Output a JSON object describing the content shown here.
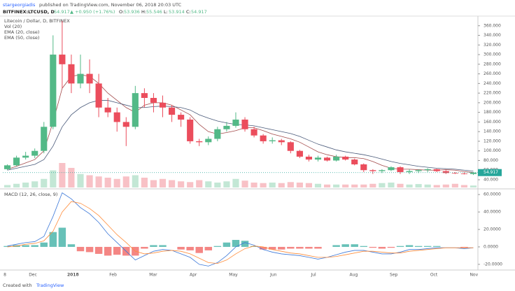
{
  "header": {
    "author": "stargeorgiadis",
    "published": "published on TradingView.com, November 06, 2018 20:03 UTC",
    "symbol": "BITFINEX:LTCUSD, D",
    "price": "54.917",
    "change": "▲ +0.950 (+1.76%)",
    "ohlc": [
      "O:",
      "53.936",
      "H:",
      "55.546",
      "L:",
      "53.914",
      "C:",
      "54.917"
    ]
  },
  "footer": {
    "created": "Created with",
    "brand": "TradingView"
  },
  "chart_data": {
    "type": "candlestick",
    "title": "Litecoin / Dollar, D, BITFINEX",
    "up_color": "#53b987",
    "down_color": "#eb4d5c",
    "open": [
      62,
      70,
      86,
      90,
      100,
      150,
      300,
      280,
      240,
      260,
      240,
      190,
      180,
      160,
      150,
      220,
      210,
      200,
      190,
      175,
      165,
      120,
      118,
      125,
      145,
      152,
      165,
      145,
      132,
      120,
      122,
      118,
      100,
      88,
      82,
      86,
      80,
      88,
      82,
      72,
      60,
      58,
      60,
      66,
      56,
      58,
      60,
      62,
      58,
      54,
      53,
      52
    ],
    "high": [
      72,
      90,
      98,
      105,
      160,
      340,
      370,
      300,
      300,
      290,
      260,
      210,
      190,
      170,
      235,
      230,
      220,
      215,
      195,
      180,
      170,
      125,
      130,
      150,
      160,
      180,
      170,
      150,
      135,
      128,
      125,
      120,
      102,
      92,
      90,
      88,
      92,
      90,
      84,
      74,
      62,
      62,
      68,
      68,
      62,
      62,
      64,
      63,
      60,
      56,
      55,
      56
    ],
    "low": [
      60,
      68,
      82,
      85,
      95,
      145,
      230,
      220,
      230,
      220,
      170,
      170,
      140,
      110,
      145,
      190,
      180,
      170,
      160,
      150,
      115,
      110,
      112,
      120,
      140,
      148,
      140,
      128,
      115,
      115,
      112,
      95,
      85,
      78,
      78,
      78,
      78,
      80,
      70,
      56,
      52,
      54,
      58,
      52,
      52,
      54,
      56,
      56,
      52,
      52,
      51,
      50
    ],
    "close": [
      70,
      86,
      90,
      100,
      150,
      300,
      280,
      240,
      260,
      240,
      190,
      180,
      160,
      150,
      220,
      210,
      200,
      190,
      175,
      165,
      120,
      118,
      125,
      145,
      152,
      165,
      145,
      132,
      120,
      122,
      118,
      100,
      88,
      82,
      86,
      80,
      88,
      82,
      72,
      60,
      58,
      60,
      66,
      56,
      58,
      60,
      62,
      58,
      54,
      53,
      52,
      55
    ],
    "volume": {
      "name": "Vol (20)",
      "values": [
        10,
        15,
        20,
        25,
        35,
        70,
        100,
        80,
        55,
        50,
        45,
        40,
        35,
        45,
        50,
        40,
        30,
        35,
        30,
        25,
        22,
        30,
        25,
        20,
        25,
        35,
        28,
        20,
        18,
        20,
        18,
        22,
        20,
        18,
        15,
        12,
        12,
        12,
        12,
        12,
        15,
        18,
        20,
        15,
        12,
        14,
        12,
        10,
        12,
        15,
        10,
        8
      ]
    },
    "series": [
      {
        "name": "EMA (20, close)",
        "color": "#a34a4a",
        "values": [
          62,
          68,
          75,
          82,
          100,
          160,
          230,
          255,
          258,
          255,
          240,
          220,
          205,
          190,
          180,
          195,
          200,
          200,
          195,
          185,
          175,
          155,
          140,
          135,
          138,
          142,
          148,
          148,
          142,
          135,
          130,
          125,
          118,
          108,
          98,
          92,
          88,
          86,
          86,
          84,
          78,
          70,
          64,
          62,
          62,
          61,
          60,
          60,
          61,
          60,
          57,
          55
        ]
      },
      {
        "name": "EMA (50, close)",
        "color": "#4a5a7a",
        "values": [
          60,
          64,
          68,
          72,
          82,
          110,
          150,
          175,
          190,
          200,
          205,
          205,
          200,
          195,
          190,
          190,
          192,
          193,
          192,
          190,
          185,
          175,
          168,
          162,
          158,
          155,
          154,
          152,
          148,
          144,
          140,
          136,
          130,
          122,
          114,
          108,
          102,
          98,
          95,
          92,
          88,
          83,
          78,
          74,
          71,
          68,
          66,
          64,
          63,
          62,
          60,
          58
        ]
      }
    ],
    "ylim": [
      24,
      380
    ],
    "yticks": [
      {
        "value": 40,
        "label": "40.000"
      },
      {
        "value": 60,
        "label": "60.000"
      },
      {
        "value": 80,
        "label": "80.000"
      },
      {
        "value": 100,
        "label": "100.000"
      },
      {
        "value": 120,
        "label": "120.000"
      },
      {
        "value": 140,
        "label": "140.000"
      },
      {
        "value": 160,
        "label": "160.000"
      },
      {
        "value": 180,
        "label": "180.000"
      },
      {
        "value": 200,
        "label": "200.000"
      },
      {
        "value": 220,
        "label": "220.000"
      },
      {
        "value": 240,
        "label": "240.000"
      },
      {
        "value": 260,
        "label": "260.000"
      },
      {
        "value": 280,
        "label": "280.000"
      },
      {
        "value": 300,
        "label": "300.000"
      },
      {
        "value": 320,
        "label": "320.000"
      },
      {
        "value": 340,
        "label": "340.000"
      },
      {
        "value": 360,
        "label": "360.000"
      }
    ],
    "last_price": {
      "value": 54.917,
      "label": "54.917",
      "color": "#26a69a"
    },
    "x_label_cut": "8",
    "x_labels": [
      "Dec",
      "2018",
      "Feb",
      "Mar",
      "Apr",
      "May",
      "Jun",
      "Jul",
      "Aug",
      "Sep",
      "Oct",
      "Nov"
    ],
    "macd": {
      "title": "MACD (12, 26, close, 9)",
      "ylim": [
        -25.7,
        66.5
      ],
      "yticks": [
        {
          "value": 60,
          "label": "60.0000"
        },
        {
          "value": 40,
          "label": "40.0000"
        },
        {
          "value": 20,
          "label": "20.0000"
        },
        {
          "value": 0,
          "label": "0.0000"
        },
        {
          "value": -20,
          "label": "-20.0000"
        }
      ],
      "macd_line": {
        "color": "#3c78d8",
        "values": [
          1,
          3,
          5,
          6,
          12,
          35,
          62,
          55,
          45,
          38,
          28,
          15,
          5,
          -5,
          -15,
          -10,
          -5,
          -3,
          -4,
          -8,
          -12,
          -20,
          -22,
          -18,
          -10,
          0,
          5,
          2,
          -3,
          -6,
          -8,
          -9,
          -10,
          -12,
          -14,
          -12,
          -9,
          -6,
          -4,
          -4,
          -6,
          -8,
          -8,
          -6,
          -3,
          -3,
          -2,
          -1,
          -1,
          -1,
          -2,
          -1
        ]
      },
      "signal_line": {
        "color": "#ff8c3a",
        "values": [
          0,
          1,
          3,
          4,
          7,
          18,
          40,
          52,
          50,
          44,
          36,
          25,
          14,
          5,
          -5,
          -8,
          -7,
          -5,
          -4,
          -5,
          -8,
          -13,
          -18,
          -19,
          -15,
          -8,
          -2,
          1,
          0,
          -3,
          -5,
          -7,
          -8,
          -10,
          -12,
          -12,
          -11,
          -9,
          -7,
          -5,
          -5,
          -6,
          -7,
          -7,
          -5,
          -4,
          -3,
          -2,
          -1,
          -1,
          -1,
          -1
        ]
      },
      "histogram": {
        "values": [
          1,
          2,
          2,
          2,
          5,
          17,
          22,
          3,
          -5,
          -6,
          -8,
          -10,
          -9,
          -10,
          -10,
          -2,
          2,
          2,
          0,
          -3,
          -4,
          -7,
          -4,
          1,
          5,
          8,
          7,
          1,
          -3,
          -3,
          -3,
          -2,
          -2,
          -2,
          -2,
          0,
          2,
          3,
          3,
          1,
          -1,
          -2,
          -1,
          1,
          2,
          1,
          1,
          1,
          0,
          0,
          -1,
          0
        ]
      }
    }
  }
}
